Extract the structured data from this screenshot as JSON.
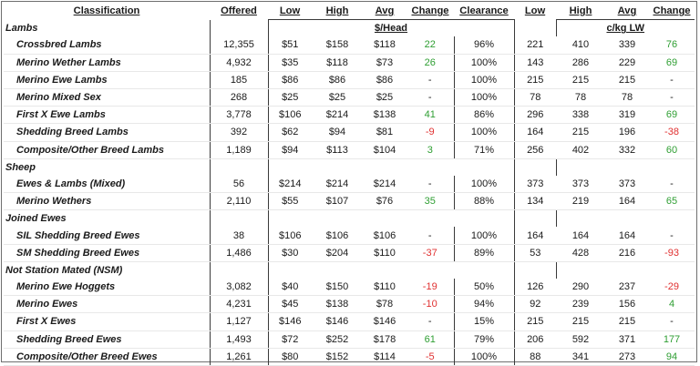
{
  "headers": {
    "classification": "Classification",
    "offered": "Offered",
    "low": "Low",
    "high": "High",
    "avg": "Avg",
    "change": "Change",
    "clearance": "Clearance",
    "low2": "Low",
    "high2": "High",
    "avg2": "Avg",
    "change2": "Change"
  },
  "units": {
    "head": "$/Head",
    "lw": "c/kg LW"
  },
  "sections": [
    {
      "name": "Lambs",
      "rows": [
        {
          "name": "Crossbred Lambs",
          "offered": "12,355",
          "low": "$51",
          "high": "$158",
          "avg": "$118",
          "change": "22",
          "clearance": "96%",
          "low2": "221",
          "high2": "410",
          "avg2": "339",
          "change2": "76"
        },
        {
          "name": "Merino Wether Lambs",
          "offered": "4,932",
          "low": "$35",
          "high": "$118",
          "avg": "$73",
          "change": "26",
          "clearance": "100%",
          "low2": "143",
          "high2": "286",
          "avg2": "229",
          "change2": "69"
        },
        {
          "name": "Merino Ewe Lambs",
          "offered": "185",
          "low": "$86",
          "high": "$86",
          "avg": "$86",
          "change": "-",
          "clearance": "100%",
          "low2": "215",
          "high2": "215",
          "avg2": "215",
          "change2": "-"
        },
        {
          "name": "Merino Mixed Sex",
          "offered": "268",
          "low": "$25",
          "high": "$25",
          "avg": "$25",
          "change": "-",
          "clearance": "100%",
          "low2": "78",
          "high2": "78",
          "avg2": "78",
          "change2": "-"
        },
        {
          "name": "First X Ewe Lambs",
          "offered": "3,778",
          "low": "$106",
          "high": "$214",
          "avg": "$138",
          "change": "41",
          "clearance": "86%",
          "low2": "296",
          "high2": "338",
          "avg2": "319",
          "change2": "69"
        },
        {
          "name": "Shedding Breed Lambs",
          "offered": "392",
          "low": "$62",
          "high": "$94",
          "avg": "$81",
          "change": "-9",
          "clearance": "100%",
          "low2": "164",
          "high2": "215",
          "avg2": "196",
          "change2": "-38"
        },
        {
          "name": "Composite/Other Breed Lambs",
          "offered": "1,189",
          "low": "$94",
          "high": "$113",
          "avg": "$104",
          "change": "3",
          "clearance": "71%",
          "low2": "256",
          "high2": "402",
          "avg2": "332",
          "change2": "60"
        }
      ]
    },
    {
      "name": "Sheep",
      "rows": [
        {
          "name": "Ewes & Lambs (Mixed)",
          "offered": "56",
          "low": "$214",
          "high": "$214",
          "avg": "$214",
          "change": "-",
          "clearance": "100%",
          "low2": "373",
          "high2": "373",
          "avg2": "373",
          "change2": "-"
        },
        {
          "name": "Merino Wethers",
          "offered": "2,110",
          "low": "$55",
          "high": "$107",
          "avg": "$76",
          "change": "35",
          "clearance": "88%",
          "low2": "134",
          "high2": "219",
          "avg2": "164",
          "change2": "65"
        }
      ]
    },
    {
      "name": "Joined Ewes",
      "rows": [
        {
          "name": "SIL Shedding Breed Ewes",
          "offered": "38",
          "low": "$106",
          "high": "$106",
          "avg": "$106",
          "change": "-",
          "clearance": "100%",
          "low2": "164",
          "high2": "164",
          "avg2": "164",
          "change2": "-"
        },
        {
          "name": "SM Shedding Breed Ewes",
          "offered": "1,486",
          "low": "$30",
          "high": "$204",
          "avg": "$110",
          "change": "-37",
          "clearance": "89%",
          "low2": "53",
          "high2": "428",
          "avg2": "216",
          "change2": "-93"
        }
      ]
    },
    {
      "name": "Not Station Mated (NSM)",
      "rows": [
        {
          "name": "Merino Ewe Hoggets",
          "offered": "3,082",
          "low": "$40",
          "high": "$150",
          "avg": "$110",
          "change": "-19",
          "clearance": "50%",
          "low2": "126",
          "high2": "290",
          "avg2": "237",
          "change2": "-29"
        },
        {
          "name": "Merino Ewes",
          "offered": "4,231",
          "low": "$45",
          "high": "$138",
          "avg": "$78",
          "change": "-10",
          "clearance": "94%",
          "low2": "92",
          "high2": "239",
          "avg2": "156",
          "change2": "4"
        },
        {
          "name": "First X Ewes",
          "offered": "1,127",
          "low": "$146",
          "high": "$146",
          "avg": "$146",
          "change": "-",
          "clearance": "15%",
          "low2": "215",
          "high2": "215",
          "avg2": "215",
          "change2": "-"
        },
        {
          "name": "Shedding Breed Ewes",
          "offered": "1,493",
          "low": "$72",
          "high": "$252",
          "avg": "$178",
          "change": "61",
          "clearance": "79%",
          "low2": "206",
          "high2": "592",
          "avg2": "371",
          "change2": "177"
        },
        {
          "name": "Composite/Other Breed Ewes",
          "offered": "1,261",
          "low": "$80",
          "high": "$152",
          "avg": "$114",
          "change": "-5",
          "clearance": "100%",
          "low2": "88",
          "high2": "341",
          "avg2": "273",
          "change2": "94"
        }
      ]
    }
  ],
  "colors": {
    "positive": "#2e9e32",
    "negative": "#e03030",
    "text": "#1a1a1a",
    "border": "#3a3a3a"
  }
}
